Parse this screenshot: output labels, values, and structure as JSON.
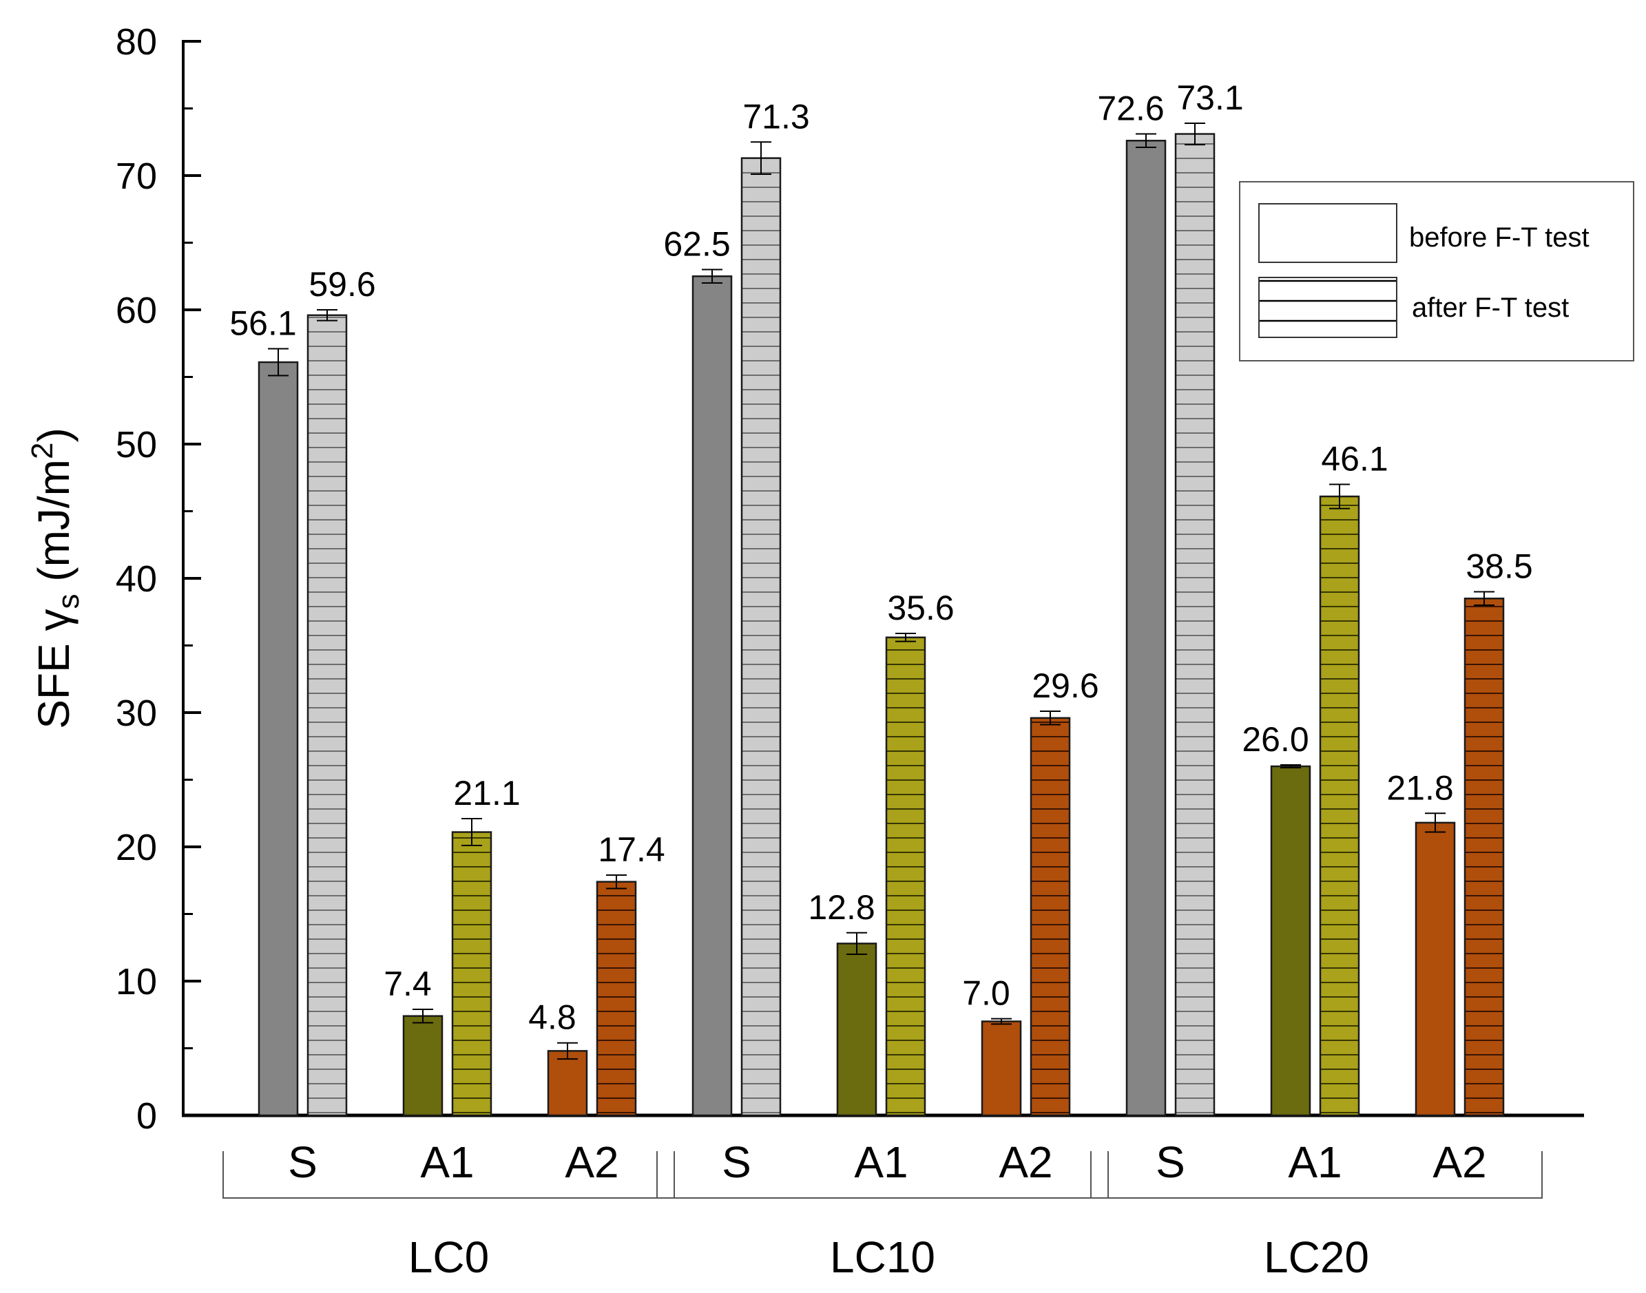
{
  "chart_data": {
    "type": "bar",
    "ylabel": "SFE γs (mJ/m²)",
    "ylabel_parts": {
      "main": "SFE γ",
      "subscript": "s",
      "unit_open": " (mJ/m",
      "superscript": "2",
      "unit_close": ")"
    },
    "ylim": [
      0,
      80
    ],
    "yticks": [
      0,
      10,
      20,
      30,
      40,
      50,
      60,
      70,
      80
    ],
    "groups": [
      {
        "name": "LC0",
        "categories": [
          {
            "name": "S",
            "before": 56.1,
            "after": 59.6,
            "before_label": "56.1",
            "after_label": "59.6",
            "before_err": 1.0,
            "after_err": 0.4
          },
          {
            "name": "A1",
            "before": 7.4,
            "after": 21.1,
            "before_label": "7.4",
            "after_label": "21.1",
            "before_err": 0.5,
            "after_err": 1.0
          },
          {
            "name": "A2",
            "before": 4.8,
            "after": 17.4,
            "before_label": "4.8",
            "after_label": "17.4",
            "before_err": 0.6,
            "after_err": 0.5
          }
        ]
      },
      {
        "name": "LC10",
        "categories": [
          {
            "name": "S",
            "before": 62.5,
            "after": 71.3,
            "before_label": "62.5",
            "after_label": "71.3",
            "before_err": 0.5,
            "after_err": 1.2
          },
          {
            "name": "A1",
            "before": 12.8,
            "after": 35.6,
            "before_label": "12.8",
            "after_label": "35.6",
            "before_err": 0.8,
            "after_err": 0.3
          },
          {
            "name": "A2",
            "before": 7.0,
            "after": 29.6,
            "before_label": "7.0",
            "after_label": "29.6",
            "before_err": 0.2,
            "after_err": 0.5
          }
        ]
      },
      {
        "name": "LC20",
        "categories": [
          {
            "name": "S",
            "before": 72.6,
            "after": 73.1,
            "before_label": "72.6",
            "after_label": "73.1",
            "before_err": 0.5,
            "after_err": 0.8
          },
          {
            "name": "A1",
            "before": 26.0,
            "after": 46.1,
            "before_label": "26.0",
            "after_label": "46.1",
            "before_err": 0.1,
            "after_err": 0.9
          },
          {
            "name": "A2",
            "before": 21.8,
            "after": 38.5,
            "before_label": "21.8",
            "after_label": "38.5",
            "before_err": 0.7,
            "after_err": 0.5
          }
        ]
      }
    ],
    "legend": {
      "position": "top-right",
      "entries": [
        {
          "label": "before F-T test",
          "pattern": "solid"
        },
        {
          "label": "after F-T test",
          "pattern": "horizontal-lines"
        }
      ]
    },
    "colors": {
      "S": {
        "before": "#858585",
        "after": "#cccccc"
      },
      "A1": {
        "before": "#6b6b0f",
        "after": "#a9a21a"
      },
      "A2": {
        "before": "#b04e0c",
        "after": "#b04e0c"
      }
    }
  }
}
